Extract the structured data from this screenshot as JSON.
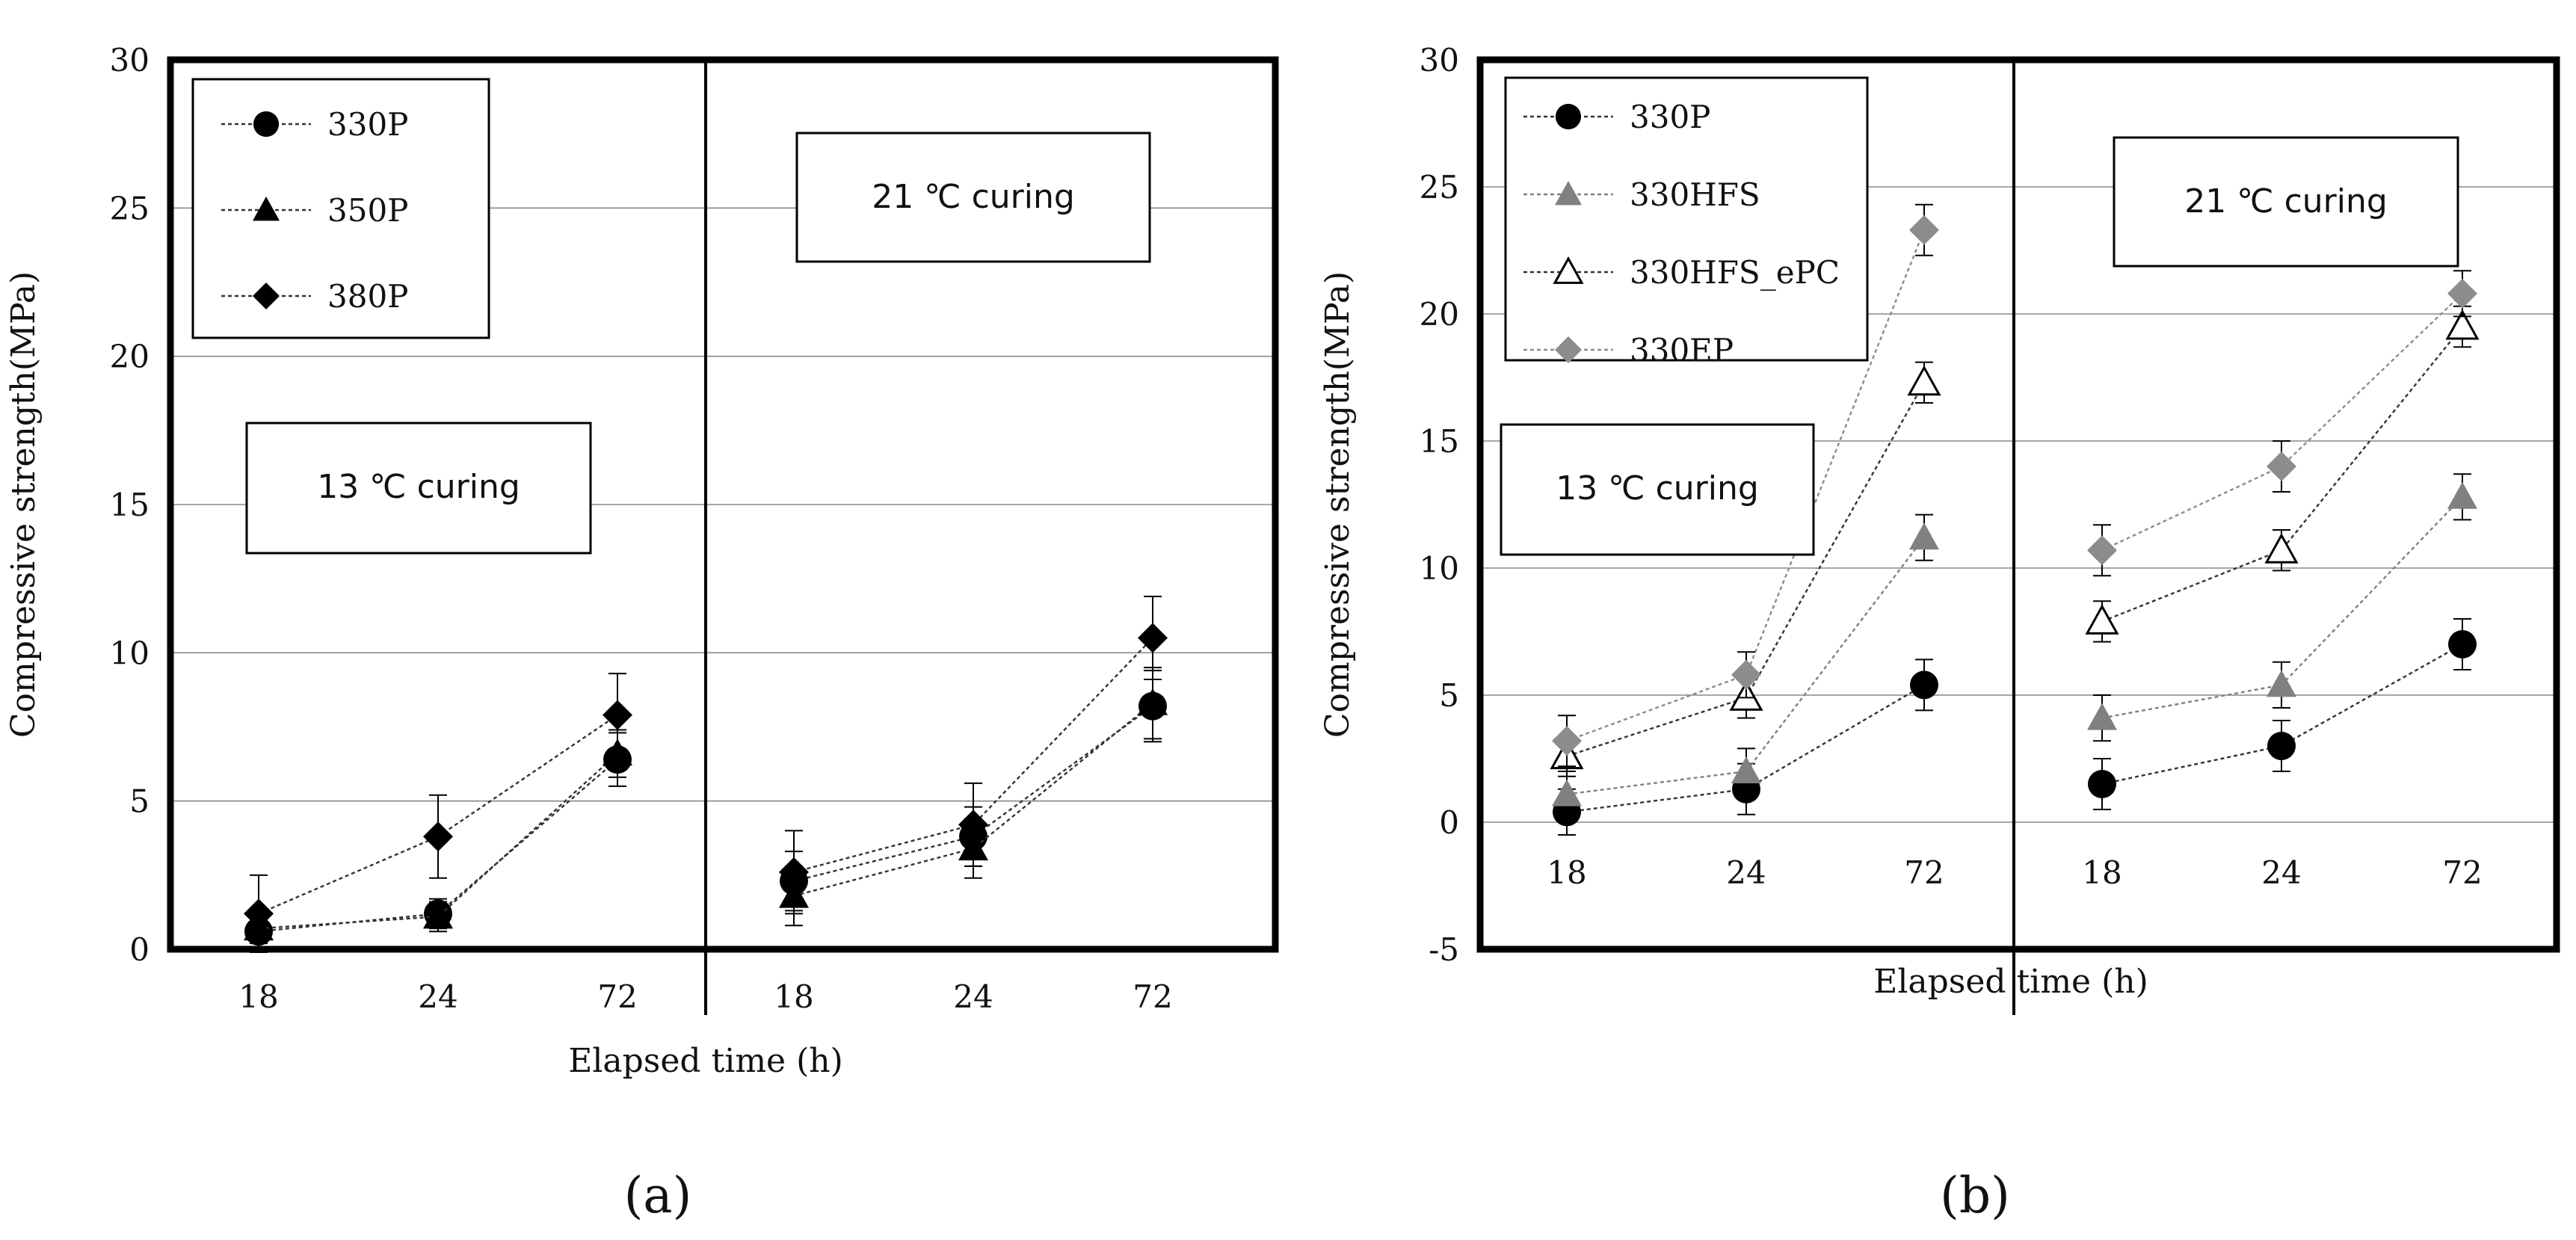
{
  "chart_data": [
    {
      "type": "line",
      "panel_label": "(a)",
      "xlabel": "Elapsed time (h)",
      "ylabel": "Compressive strength(MPa)",
      "ylim": [
        0,
        30
      ],
      "yticks": [
        "0",
        "5",
        "10",
        "15",
        "20",
        "25",
        "30"
      ],
      "groups": [
        {
          "annotation": "13 ℃ curing",
          "categories": [
            "18",
            "24",
            "72"
          ]
        },
        {
          "annotation": "21 ℃ curing",
          "categories": [
            "18",
            "24",
            "72"
          ]
        }
      ],
      "series": [
        {
          "name": "330P",
          "marker": "circle",
          "color": "#000000",
          "values": [
            [
              0.6,
              1.2,
              6.4
            ],
            [
              2.3,
              3.8,
              8.2
            ]
          ],
          "errors": [
            [
              0.6,
              0.5,
              0.9
            ],
            [
              1.0,
              1.0,
              1.2
            ]
          ]
        },
        {
          "name": "350P",
          "marker": "triangle",
          "color": "#000000",
          "values": [
            [
              0.7,
              1.1,
              6.6
            ],
            [
              1.8,
              3.4,
              8.3
            ]
          ],
          "errors": [
            [
              0.5,
              0.5,
              0.8
            ],
            [
              1.0,
              1.0,
              1.2
            ]
          ]
        },
        {
          "name": "380P",
          "marker": "diamond",
          "color": "#000000",
          "values": [
            [
              1.2,
              3.8,
              7.9
            ],
            [
              2.6,
              4.2,
              10.5
            ]
          ],
          "errors": [
            [
              1.3,
              1.4,
              1.4
            ],
            [
              1.4,
              1.4,
              1.4
            ]
          ]
        }
      ]
    },
    {
      "type": "line",
      "panel_label": "(b)",
      "xlabel": "Elapsed time (h)",
      "ylabel": "Compressive strength(MPa)",
      "ylim": [
        -5,
        30
      ],
      "yticks": [
        "-5",
        "0",
        "5",
        "10",
        "15",
        "20",
        "25",
        "30"
      ],
      "groups": [
        {
          "annotation": "13 ℃ curing",
          "categories": [
            "18",
            "24",
            "72"
          ]
        },
        {
          "annotation": "21 ℃ curing",
          "categories": [
            "18",
            "24",
            "72"
          ]
        }
      ],
      "series": [
        {
          "name": "330P",
          "marker": "circle",
          "color": "#000000",
          "values": [
            [
              0.4,
              1.3,
              5.4
            ],
            [
              1.5,
              3.0,
              7.0
            ]
          ],
          "errors": [
            [
              0.9,
              1.0,
              1.0
            ],
            [
              1.0,
              1.0,
              1.0
            ]
          ]
        },
        {
          "name": "330HFS",
          "marker": "triangle",
          "color": "#808080",
          "values": [
            [
              1.1,
              2.0,
              11.2
            ],
            [
              4.1,
              5.4,
              12.8
            ]
          ],
          "errors": [
            [
              0.9,
              0.9,
              0.9
            ],
            [
              0.9,
              0.9,
              0.9
            ]
          ]
        },
        {
          "name": "330HFS_ePC",
          "marker": "triangle-open",
          "color": "#000000",
          "values": [
            [
              2.6,
              4.9,
              17.3
            ],
            [
              7.9,
              10.7,
              19.5
            ]
          ],
          "errors": [
            [
              0.8,
              0.8,
              0.8
            ],
            [
              0.8,
              0.8,
              0.8
            ]
          ]
        },
        {
          "name": "330EP",
          "marker": "diamond",
          "color": "#8c8c8c",
          "values": [
            [
              3.2,
              5.8,
              23.3
            ],
            [
              10.7,
              14.0,
              20.8
            ]
          ],
          "errors": [
            [
              1.0,
              0.9,
              1.0
            ],
            [
              1.0,
              1.0,
              0.9
            ]
          ]
        }
      ]
    }
  ]
}
